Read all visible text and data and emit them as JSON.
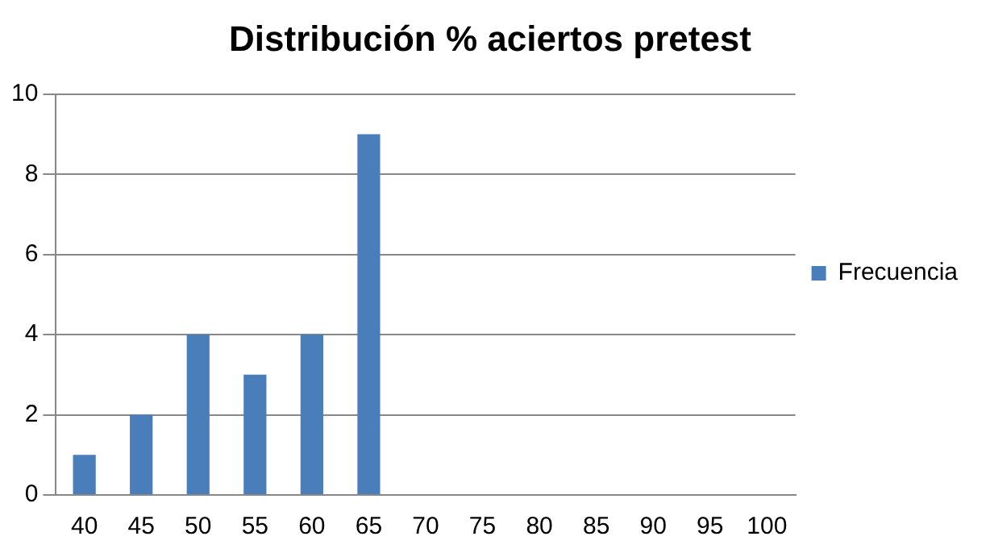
{
  "chart_data": {
    "type": "bar",
    "title": "Distribución % aciertos pretest",
    "categories": [
      "40",
      "45",
      "50",
      "55",
      "60",
      "65",
      "70",
      "75",
      "80",
      "85",
      "90",
      "95",
      "100"
    ],
    "series": [
      {
        "name": "Frecuencia",
        "color": "#4a7ebb",
        "values": [
          1,
          2,
          4,
          3,
          4,
          9,
          0,
          0,
          0,
          0,
          0,
          0,
          0
        ]
      }
    ],
    "ylim": [
      0,
      10
    ],
    "yticks": [
      0,
      2,
      4,
      6,
      8,
      10
    ],
    "grid": "y",
    "legend": "right"
  }
}
